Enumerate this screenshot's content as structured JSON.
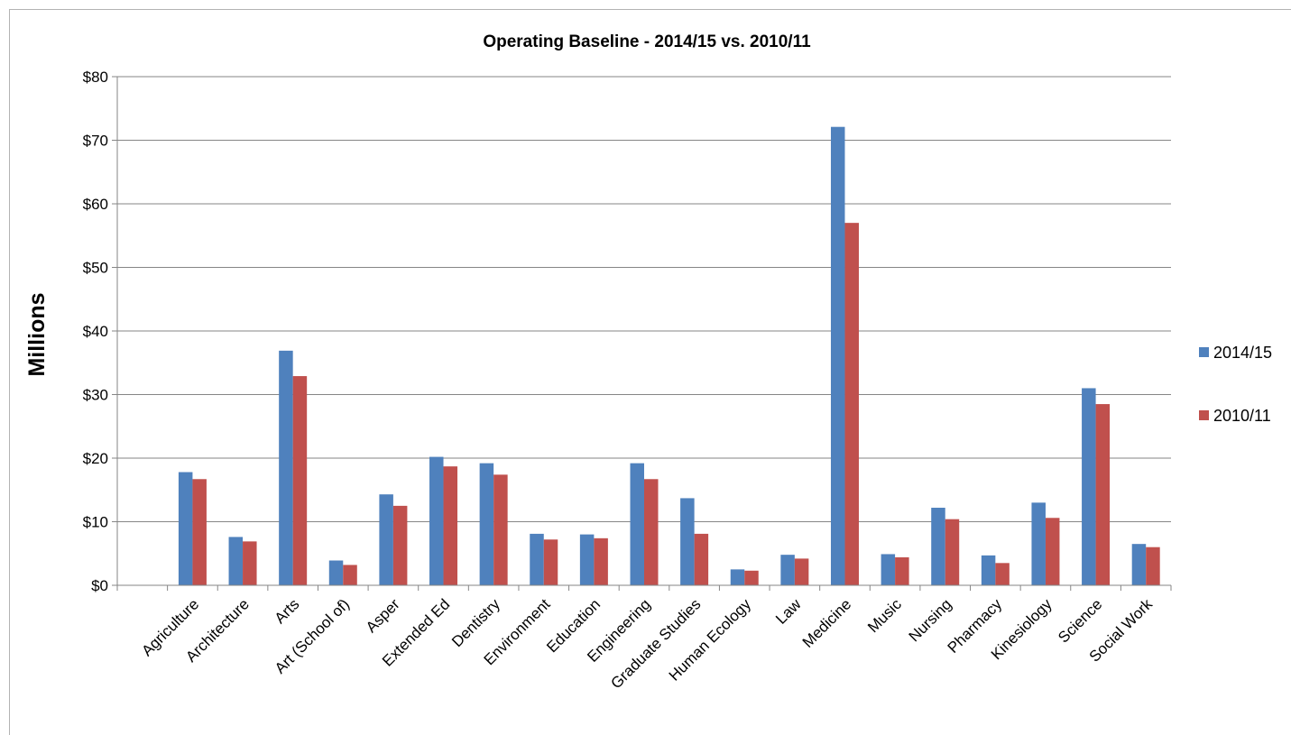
{
  "chart_data": {
    "type": "bar",
    "title": "Operating Baseline - 2014/15 vs. 2010/11",
    "xlabel": "",
    "ylabel": "Millions",
    "ylim": [
      0,
      80
    ],
    "yticks": [
      0,
      10,
      20,
      30,
      40,
      50,
      60,
      70,
      80
    ],
    "ytick_labels": [
      "$0",
      "$10",
      "$20",
      "$30",
      "$40",
      "$50",
      "$60",
      "$70",
      "$80"
    ],
    "grid": true,
    "legend_position": "right",
    "categories": [
      "Agriculture",
      "Architecture",
      "Arts",
      "Art (School of)",
      "Asper",
      "Extended Ed",
      "Dentistry",
      "Environment",
      "Education",
      "Engineering",
      "Graduate Studies",
      "Human Ecology",
      "Law",
      "Medicine",
      "Music",
      "Nursing",
      "Pharmacy",
      "Kinesiology",
      "Science",
      "Social Work"
    ],
    "series": [
      {
        "name": "2014/15",
        "color": "#4f81bd",
        "values": [
          17.8,
          7.6,
          36.9,
          3.9,
          14.3,
          20.2,
          19.2,
          8.1,
          8.0,
          19.2,
          13.7,
          2.5,
          4.8,
          72.1,
          4.9,
          12.2,
          4.7,
          13.0,
          31.0,
          6.5
        ]
      },
      {
        "name": "2010/11",
        "color": "#c0504d",
        "values": [
          16.7,
          6.9,
          32.9,
          3.2,
          12.5,
          18.7,
          17.4,
          7.2,
          7.4,
          16.7,
          8.1,
          2.3,
          4.2,
          57.0,
          4.4,
          10.4,
          3.5,
          10.6,
          28.5,
          6.0
        ]
      }
    ]
  }
}
